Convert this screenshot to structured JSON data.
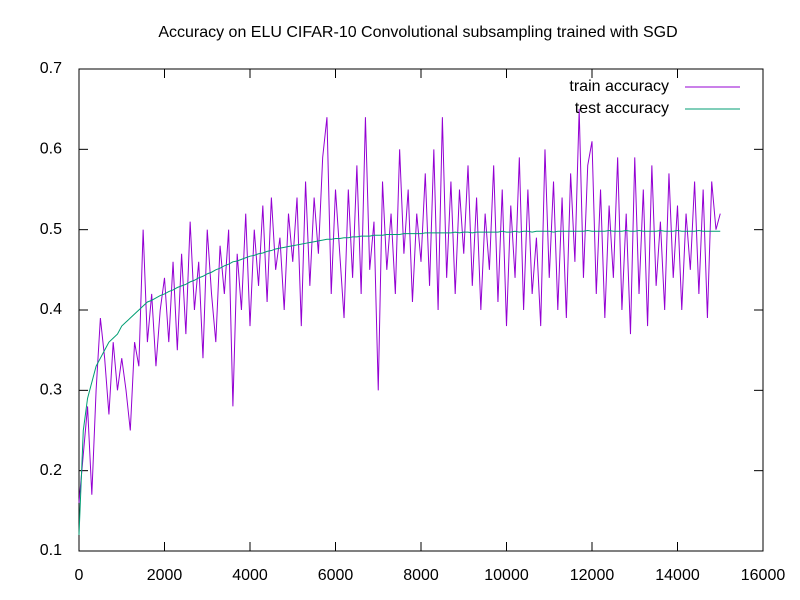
{
  "chart_data": {
    "type": "line",
    "title": "Accuracy on ELU CIFAR-10 Convolutional subsampling trained with SGD",
    "x": [
      0,
      100,
      200,
      300,
      400,
      500,
      600,
      700,
      800,
      900,
      1000,
      1100,
      1200,
      1300,
      1400,
      1500,
      1600,
      1700,
      1800,
      1900,
      2000,
      2100,
      2200,
      2300,
      2400,
      2500,
      2600,
      2700,
      2800,
      2900,
      3000,
      3100,
      3200,
      3300,
      3400,
      3500,
      3600,
      3700,
      3800,
      3900,
      4000,
      4100,
      4200,
      4300,
      4400,
      4500,
      4600,
      4700,
      4800,
      4900,
      5000,
      5100,
      5200,
      5300,
      5400,
      5500,
      5600,
      5700,
      5800,
      5900,
      6000,
      6100,
      6200,
      6300,
      6400,
      6500,
      6600,
      6700,
      6800,
      6900,
      7000,
      7100,
      7200,
      7300,
      7400,
      7500,
      7600,
      7700,
      7800,
      7900,
      8000,
      8100,
      8200,
      8300,
      8400,
      8500,
      8600,
      8700,
      8800,
      8900,
      9000,
      9100,
      9200,
      9300,
      9400,
      9500,
      9600,
      9700,
      9800,
      9900,
      10000,
      10100,
      10200,
      10300,
      10400,
      10500,
      10600,
      10700,
      10800,
      10900,
      11000,
      11100,
      11200,
      11300,
      11400,
      11500,
      11600,
      11700,
      11800,
      11900,
      12000,
      12100,
      12200,
      12300,
      12400,
      12500,
      12600,
      12700,
      12800,
      12900,
      13000,
      13100,
      13200,
      13300,
      13400,
      13500,
      13600,
      13700,
      13800,
      13900,
      14000,
      14100,
      14200,
      14300,
      14400,
      14500,
      14600,
      14700,
      14800,
      14900,
      15000
    ],
    "series": [
      {
        "name": "train accuracy",
        "color": "#9400d3",
        "values": [
          0.16,
          0.22,
          0.28,
          0.17,
          0.3,
          0.39,
          0.34,
          0.27,
          0.36,
          0.3,
          0.34,
          0.3,
          0.25,
          0.36,
          0.33,
          0.5,
          0.36,
          0.42,
          0.33,
          0.4,
          0.44,
          0.36,
          0.46,
          0.35,
          0.47,
          0.37,
          0.51,
          0.4,
          0.46,
          0.34,
          0.5,
          0.42,
          0.36,
          0.48,
          0.42,
          0.5,
          0.28,
          0.47,
          0.4,
          0.52,
          0.38,
          0.5,
          0.43,
          0.53,
          0.41,
          0.54,
          0.45,
          0.49,
          0.4,
          0.52,
          0.46,
          0.54,
          0.38,
          0.56,
          0.43,
          0.54,
          0.47,
          0.59,
          0.64,
          0.42,
          0.55,
          0.47,
          0.39,
          0.55,
          0.44,
          0.58,
          0.42,
          0.64,
          0.45,
          0.51,
          0.3,
          0.56,
          0.45,
          0.52,
          0.42,
          0.6,
          0.47,
          0.55,
          0.41,
          0.52,
          0.46,
          0.57,
          0.43,
          0.6,
          0.4,
          0.64,
          0.44,
          0.56,
          0.42,
          0.55,
          0.47,
          0.58,
          0.43,
          0.54,
          0.4,
          0.52,
          0.45,
          0.58,
          0.41,
          0.55,
          0.38,
          0.53,
          0.44,
          0.59,
          0.4,
          0.55,
          0.42,
          0.49,
          0.38,
          0.6,
          0.44,
          0.56,
          0.4,
          0.54,
          0.39,
          0.57,
          0.46,
          0.65,
          0.44,
          0.58,
          0.61,
          0.42,
          0.55,
          0.39,
          0.53,
          0.44,
          0.59,
          0.4,
          0.52,
          0.37,
          0.59,
          0.42,
          0.55,
          0.38,
          0.58,
          0.43,
          0.51,
          0.4,
          0.57,
          0.44,
          0.53,
          0.4,
          0.52,
          0.45,
          0.56,
          0.42,
          0.55,
          0.39,
          0.56,
          0.5,
          0.52
        ]
      },
      {
        "name": "test accuracy",
        "color": "#009e73",
        "values": [
          0.12,
          0.25,
          0.29,
          0.31,
          0.33,
          0.34,
          0.35,
          0.36,
          0.365,
          0.37,
          0.38,
          0.385,
          0.39,
          0.395,
          0.4,
          0.405,
          0.41,
          0.412,
          0.415,
          0.418,
          0.42,
          0.423,
          0.425,
          0.428,
          0.43,
          0.432,
          0.435,
          0.437,
          0.44,
          0.442,
          0.445,
          0.447,
          0.45,
          0.452,
          0.455,
          0.457,
          0.46,
          0.461,
          0.463,
          0.465,
          0.467,
          0.468,
          0.47,
          0.471,
          0.473,
          0.474,
          0.476,
          0.477,
          0.478,
          0.479,
          0.48,
          0.481,
          0.482,
          0.483,
          0.484,
          0.485,
          0.486,
          0.487,
          0.488,
          0.488,
          0.489,
          0.489,
          0.49,
          0.49,
          0.491,
          0.491,
          0.492,
          0.492,
          0.492,
          0.493,
          0.493,
          0.493,
          0.494,
          0.494,
          0.494,
          0.494,
          0.495,
          0.495,
          0.495,
          0.495,
          0.495,
          0.496,
          0.496,
          0.496,
          0.496,
          0.496,
          0.496,
          0.496,
          0.497,
          0.496,
          0.497,
          0.497,
          0.496,
          0.497,
          0.497,
          0.497,
          0.497,
          0.497,
          0.497,
          0.498,
          0.497,
          0.497,
          0.498,
          0.497,
          0.498,
          0.498,
          0.497,
          0.498,
          0.498,
          0.498,
          0.498,
          0.497,
          0.498,
          0.498,
          0.498,
          0.498,
          0.498,
          0.498,
          0.498,
          0.499,
          0.498,
          0.498,
          0.498,
          0.498,
          0.499,
          0.498,
          0.498,
          0.498,
          0.499,
          0.498,
          0.498,
          0.499,
          0.498,
          0.498,
          0.498,
          0.498,
          0.499,
          0.498,
          0.498,
          0.498,
          0.499,
          0.498,
          0.498,
          0.498,
          0.498,
          0.499,
          0.498,
          0.498,
          0.498,
          0.498,
          0.498
        ]
      }
    ],
    "xlim": [
      0,
      16000
    ],
    "xticks": [
      0,
      2000,
      4000,
      6000,
      8000,
      10000,
      12000,
      14000,
      16000
    ],
    "ylim": [
      0.1,
      0.7
    ],
    "yticks": [
      0.1,
      0.2,
      0.3,
      0.4,
      0.5,
      0.6,
      0.7
    ],
    "legend": "top right"
  }
}
